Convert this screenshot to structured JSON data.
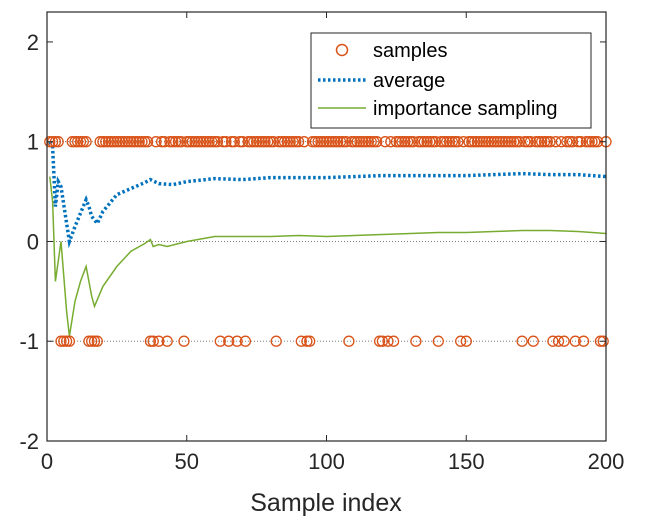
{
  "chart_data": {
    "type": "line",
    "title": "",
    "xlabel": "Sample index",
    "ylabel": "",
    "xlim": [
      0,
      200
    ],
    "ylim": [
      -2,
      2.3
    ],
    "xticks": [
      0,
      50,
      100,
      150,
      200
    ],
    "yticks": [
      -2,
      -1,
      0,
      1,
      2
    ],
    "xtick_labels": [
      "0",
      "50",
      "100",
      "150",
      "200"
    ],
    "ytick_labels": [
      "-2",
      "-1",
      "0",
      "1",
      "2"
    ],
    "reference_lines": [
      1,
      0,
      -1
    ],
    "legend_position": "top-right",
    "series": [
      {
        "name": "samples",
        "style": "circle-markers",
        "color": "#D95319",
        "note": "each sample is +1 or -1; x lists the indices with value -1, all other indices have value +1",
        "x_at_minus_one": [
          5,
          6,
          7,
          8,
          15,
          16,
          17,
          18,
          37,
          38,
          40,
          43,
          49,
          62,
          65,
          68,
          71,
          82,
          91,
          93,
          94,
          108,
          119,
          120,
          122,
          124,
          132,
          140,
          148,
          150,
          170,
          174,
          181,
          183,
          185,
          189,
          192,
          198,
          199
        ],
        "x_range": [
          1,
          200
        ]
      },
      {
        "name": "average",
        "style": "dotted",
        "color": "#0072BD",
        "x": [
          1,
          2,
          3,
          4,
          5,
          8,
          10,
          14,
          15,
          16,
          18,
          20,
          25,
          30,
          35,
          37,
          40,
          45,
          50,
          60,
          70,
          80,
          90,
          100,
          110,
          120,
          130,
          140,
          150,
          160,
          170,
          180,
          190,
          200
        ],
        "values": [
          1.0,
          0.95,
          0.35,
          0.6,
          0.55,
          0.0,
          0.15,
          0.42,
          0.35,
          0.25,
          0.18,
          0.3,
          0.47,
          0.53,
          0.59,
          0.62,
          0.58,
          0.57,
          0.6,
          0.63,
          0.62,
          0.64,
          0.64,
          0.64,
          0.65,
          0.66,
          0.66,
          0.66,
          0.66,
          0.67,
          0.68,
          0.67,
          0.67,
          0.65
        ]
      },
      {
        "name": "importance sampling",
        "style": "solid",
        "color": "#77AC30",
        "x": [
          1,
          2,
          3,
          4,
          5,
          6,
          7,
          8,
          10,
          12,
          14,
          15,
          16,
          17,
          20,
          25,
          30,
          35,
          37,
          38,
          40,
          43,
          50,
          60,
          70,
          80,
          90,
          100,
          110,
          120,
          130,
          140,
          150,
          160,
          170,
          180,
          190,
          200
        ],
        "values": [
          0.65,
          0.4,
          -0.4,
          -0.2,
          0.0,
          -0.35,
          -0.7,
          -0.95,
          -0.6,
          -0.4,
          -0.25,
          -0.4,
          -0.55,
          -0.65,
          -0.45,
          -0.25,
          -0.1,
          -0.02,
          0.02,
          -0.05,
          -0.03,
          -0.05,
          0.0,
          0.05,
          0.05,
          0.05,
          0.06,
          0.05,
          0.06,
          0.07,
          0.08,
          0.09,
          0.09,
          0.1,
          0.11,
          0.11,
          0.1,
          0.08
        ]
      }
    ]
  }
}
